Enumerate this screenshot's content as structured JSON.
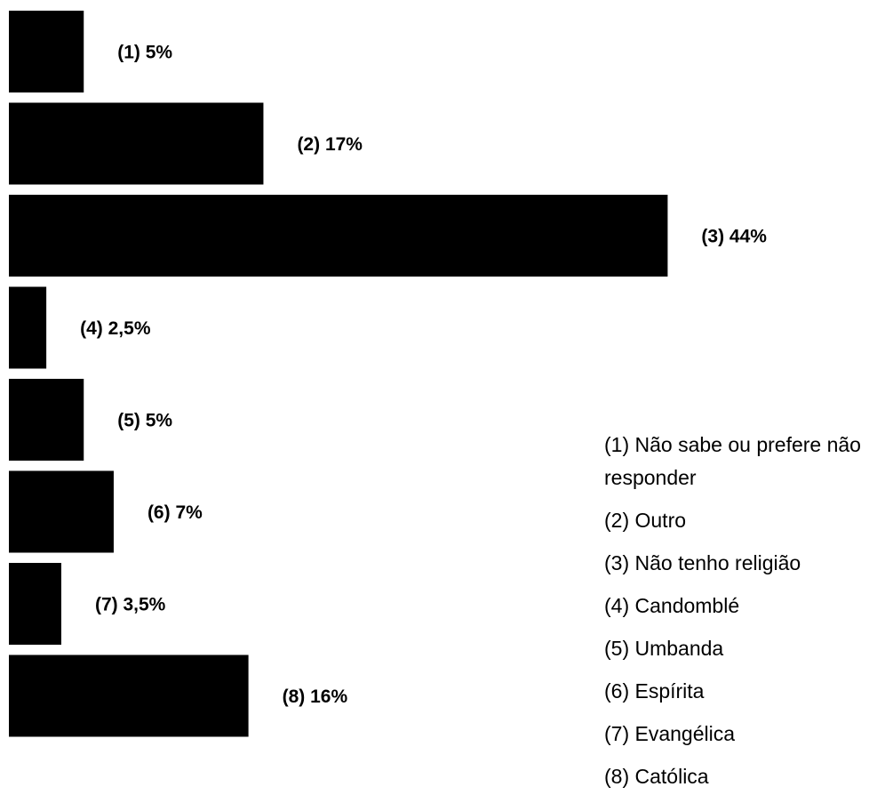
{
  "chart_data": {
    "type": "bar",
    "orientation": "horizontal",
    "categories": [
      "(1) Não sabe ou prefere não responder",
      "(2) Outro",
      "(3) Não tenho religião",
      "(4) Candomblé",
      "(5) Umbanda",
      "(6) Espírita",
      "(7) Evangélica",
      "(8) Católica"
    ],
    "values": [
      5,
      17,
      44,
      2.5,
      5,
      7,
      3.5,
      16
    ],
    "value_labels": [
      "(1) 5%",
      "(2) 17%",
      "(3) 44%",
      "(4) 2,5%",
      "(5) 5%",
      "(6) 7%",
      "(7) 3,5%",
      "(8) 16%"
    ],
    "color": "#000000"
  }
}
